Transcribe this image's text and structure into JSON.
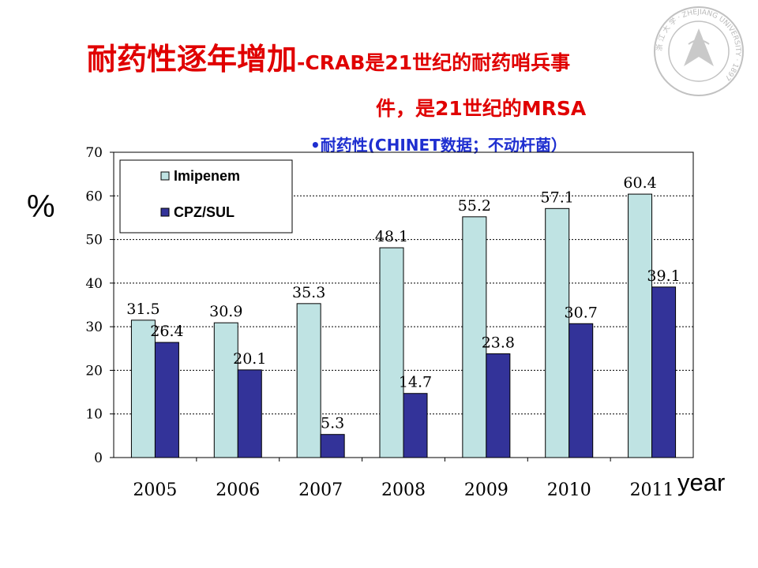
{
  "title": {
    "main": "耐药性逐年增加",
    "rest_line1": "-CRAB是21世纪的耐药哨兵事",
    "rest_line2": "件，是21世纪的MRSA"
  },
  "subtitle": "•耐药性(CHINET数据；不动杆菌）",
  "logo": {
    "text": "浙 江 大 学 · ZHEJIANG UNIVERSITY · 1897"
  },
  "chart_data": {
    "type": "bar",
    "categories": [
      "2005",
      "2006",
      "2007",
      "2008",
      "2009",
      "2010",
      "2011"
    ],
    "series": [
      {
        "name": "Imipenem",
        "values": [
          31.5,
          30.9,
          35.3,
          48.1,
          55.2,
          57.1,
          60.4
        ],
        "value_labels": [
          "31.5",
          "30.9",
          "35.3",
          "48.1",
          "55.2",
          "57.1",
          "60.4"
        ],
        "color": "#bfe3e3"
      },
      {
        "name": "CPZ/SUL",
        "values": [
          26.4,
          20.1,
          5.3,
          14.7,
          23.8,
          30.7,
          39.1
        ],
        "value_labels": [
          "26.4",
          "20.1",
          "5.3",
          "14.7",
          "23.8",
          "30.7",
          "39.1"
        ],
        "color": "#333399"
      }
    ],
    "ylim": [
      0,
      70
    ],
    "yticks": [
      "0",
      "10",
      "20",
      "30",
      "40",
      "50",
      "60",
      "70"
    ],
    "ylabel": "%",
    "xlabel": "year",
    "grid": true,
    "legend": "top-left"
  }
}
